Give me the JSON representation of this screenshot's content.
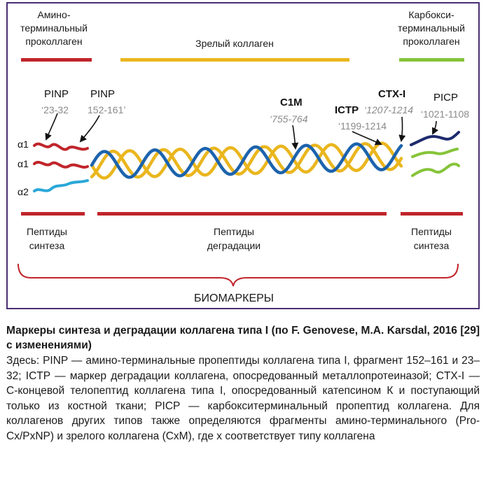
{
  "diagram": {
    "headers": {
      "amino_terminal": [
        "Амино-",
        "терминальный",
        "проколлаген"
      ],
      "mature": "Зрелый коллаген",
      "carboxy_terminal": [
        "Карбокси-",
        "терминальный",
        "проколлаген"
      ]
    },
    "markers": {
      "pinp_1": {
        "name": "PINP",
        "range": "‘23-32"
      },
      "pinp_2": {
        "name": "PINP",
        "range": "152-161’"
      },
      "c1m": {
        "name": "C1M",
        "range": "‘755-764"
      },
      "ictp": {
        "name": "ICTP",
        "range": "‘1199-1214"
      },
      "ctx": {
        "name": "CTX-I",
        "range": "‘1207-1214"
      },
      "picp": {
        "name": "PICP",
        "range": "‘1021-1108"
      }
    },
    "chains": [
      "α1",
      "α1",
      "α2"
    ],
    "groups": {
      "synthesis_left": [
        "Пептиды",
        "синтеза"
      ],
      "degradation": [
        "Пептиды",
        "деградации"
      ],
      "synthesis_right": [
        "Пептиды",
        "синтеза"
      ]
    },
    "biomarkers": "БИОМАРКЕРЫ",
    "colors": {
      "frame": "#4a2e74",
      "red": "#c0252b",
      "yellow": "#eab61e",
      "green": "#86c43a",
      "blue": "#1c63ad",
      "navy": "#1d2a6e",
      "cyan": "#2aa7d8",
      "gray_text": "#8a8a8a"
    }
  },
  "caption": {
    "title": "Маркеры синтеза и деградации коллагена типа I (по F. Genovese, M.A. Karsdal, 2016 [29] с изменениями)",
    "body": "Здесь: PINP — амино-терминальные пропептиды коллагена типа I, фрагмент 152–161 и 23–32; ICTP — маркер деградации коллагена, опосредованный металлопротеиназой; CTX-I — С-концевой телопептид коллагена типа I, опосредованный катепсином К и поступающий только из костной ткани; PICP — карбокситерминальный пропептид коллагена. Для коллагенов других типов также определяются фрагменты амино-терминального (Pro-Cx/PxNP) и зрелого коллагена (CxM), где x соответствует типу коллагена"
  }
}
